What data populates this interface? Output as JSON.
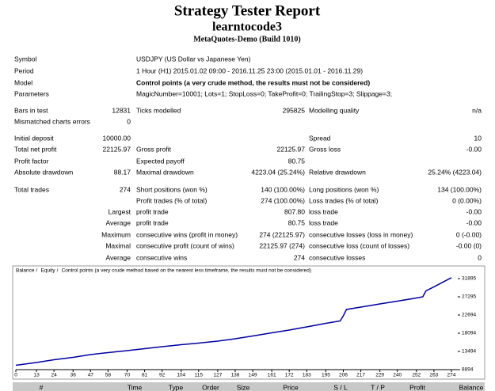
{
  "header": {
    "title": "Strategy Tester Report",
    "subtitle": "learntocode3",
    "build": "MetaQuotes-Demo (Build 1010)"
  },
  "report": {
    "rows": [
      [
        "Symbol",
        "USDJPY (US Dollar vs Japanese Yen)"
      ],
      [
        "Period",
        "1 Hour (H1) 2015.01.02 09:00 - 2016.11.25 23:00 (2015.01.01 - 2016.11.29)"
      ],
      [
        "Model",
        "Control points (a very crude method, the results must not be considered)"
      ],
      [
        "Parameters",
        "MagicNumber=10001; Lots=1; StopLoss=0; TakeProfit=0; TrailingStop=3; Slippage=3;"
      ],
      [
        "Bars in test",
        "12831",
        "Ticks modelled",
        "295825",
        "Modelling quality",
        "n/a"
      ],
      [
        "Mismatched charts errors",
        "0",
        null,
        null,
        null,
        null
      ],
      [
        "Initial deposit",
        "10000.00",
        null,
        null,
        "Spread",
        "10"
      ],
      [
        "Total net profit",
        "22125.97",
        "Gross profit",
        "22125.97",
        "Gross loss",
        "-0.00"
      ],
      [
        "Profit factor",
        null,
        "Expected payoff",
        "80.75",
        null,
        null
      ],
      [
        "Absolute drawdown",
        "88.17",
        "Maximal drawdown",
        "4223.04 (25.24%)",
        "Relative drawdown",
        "25.24% (4223.04)"
      ],
      [
        "Total trades",
        "274",
        "Short positions (won %)",
        "140 (100.00%)",
        "Long positions (won %)",
        "134 (100.00%)"
      ],
      [
        null,
        null,
        "Profit trades (% of total)",
        "274 (100.00%)",
        "Loss trades (% of total)",
        "0 (0.00%)"
      ],
      [
        null,
        "Largest",
        "profit trade",
        "807.80",
        "loss trade",
        "-0.00"
      ],
      [
        null,
        "Average",
        "profit trade",
        "80.75",
        "loss trade",
        "-0.00"
      ],
      [
        null,
        "Maximum",
        "consecutive wins (profit in money)",
        "274 (22125.97)",
        "consecutive losses (loss in money)",
        "0 (-0.00)"
      ],
      [
        null,
        "Maximal",
        "consecutive profit (count of wins)",
        "22125.97 (274)",
        "consecutive loss (count of losses)",
        "-0.00 (0)"
      ],
      [
        null,
        "Average",
        "consecutive wins",
        "274",
        "consecutive losses",
        "0"
      ]
    ]
  },
  "chart": {
    "type": "line",
    "legend": [
      {
        "name": "Balance",
        "color": "#0000c0"
      },
      {
        "name": "Equity",
        "color": "#00a000"
      },
      {
        "name": "Control points (a very crude method based on the nearest less timeframe, the results must not be considered)",
        "color": "#e00000"
      }
    ],
    "x": [
      0,
      13,
      24,
      36,
      47,
      58,
      70,
      81,
      92,
      104,
      115,
      127,
      138,
      149,
      161,
      172,
      183,
      195,
      204,
      206,
      208,
      217,
      229,
      240,
      252,
      256,
      258,
      263,
      274
    ],
    "series": [
      {
        "name": "Balance",
        "color": "#0000a0",
        "values": [
          10000,
          10700,
          11400,
          12000,
          12700,
          13200,
          13700,
          14200,
          14700,
          15200,
          15600,
          16100,
          16700,
          17400,
          18200,
          18900,
          19700,
          20600,
          21200,
          22500,
          24100,
          24700,
          25500,
          26200,
          27000,
          27300,
          28800,
          29800,
          32126
        ]
      }
    ],
    "xlim": [
      0,
      278
    ],
    "ylim": [
      8894,
      34295
    ],
    "xticks": [
      0,
      13,
      24,
      36,
      47,
      58,
      70,
      81,
      92,
      104,
      115,
      127,
      138,
      149,
      161,
      172,
      183,
      195,
      206,
      217,
      229,
      240,
      252,
      263,
      274
    ],
    "yticks": [
      8894,
      13494,
      18094,
      22694,
      27295,
      31895
    ]
  },
  "trades_table": {
    "columns": [
      "#",
      "Time",
      "Type",
      "Order",
      "Size",
      "Price",
      "S / L",
      "T / P",
      "Profit",
      "Balance"
    ]
  }
}
